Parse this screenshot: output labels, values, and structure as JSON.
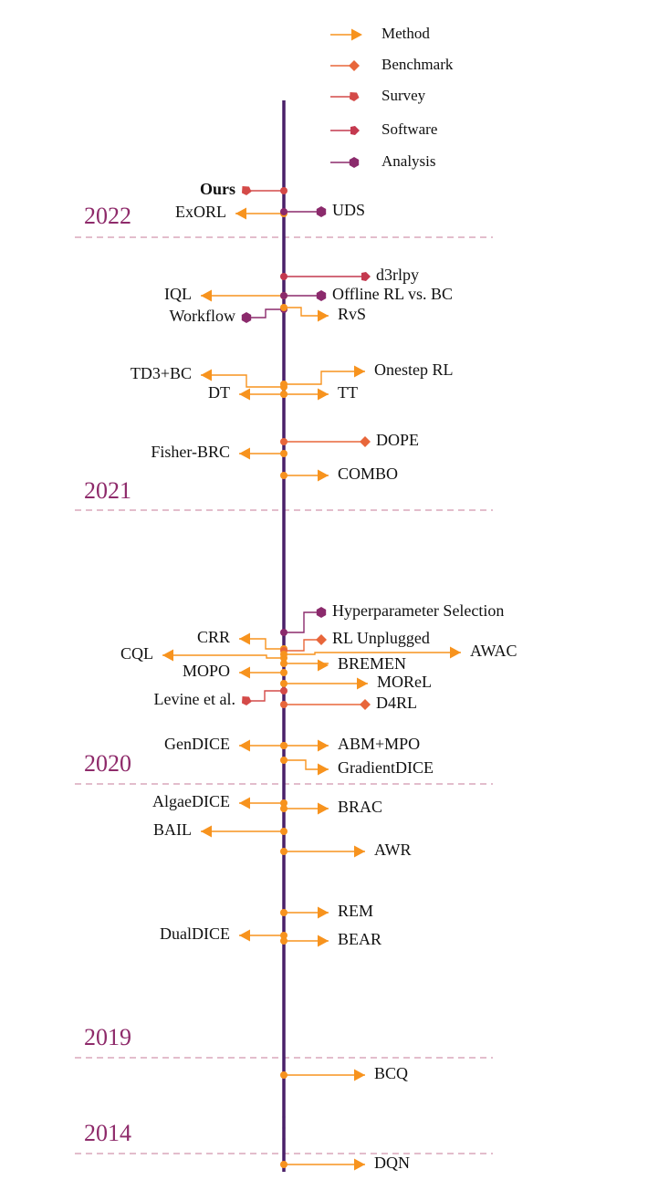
{
  "legend": [
    {
      "type": "Method",
      "label": "Method"
    },
    {
      "type": "Benchmark",
      "label": "Benchmark"
    },
    {
      "type": "Survey",
      "label": "Survey"
    },
    {
      "type": "Software",
      "label": "Software"
    },
    {
      "type": "Analysis",
      "label": "Analysis"
    }
  ],
  "colors": {
    "Method": "#f7931e",
    "Benchmark": "#e8663a",
    "Survey": "#d44a48",
    "Software": "#c4394f",
    "Analysis": "#8b2a6c",
    "axis": "#4a2069",
    "year": "#8e2a6a",
    "divider": "#c77b9a"
  },
  "years": [
    "2022",
    "2021",
    "2020",
    "2019",
    "2014"
  ],
  "entries": [
    {
      "id": "ours",
      "label": "Ours",
      "type": "Survey",
      "side": "left",
      "bold": true
    },
    {
      "id": "exorl",
      "label": "ExORL",
      "type": "Method",
      "side": "left"
    },
    {
      "id": "uds",
      "label": "UDS",
      "type": "Analysis",
      "side": "right"
    },
    {
      "id": "d3rlpy",
      "label": "d3rlpy",
      "type": "Software",
      "side": "right"
    },
    {
      "id": "iql",
      "label": "IQL",
      "type": "Method",
      "side": "left"
    },
    {
      "id": "offline-rl-vs-bc",
      "label": "Offline RL vs. BC",
      "type": "Analysis",
      "side": "right"
    },
    {
      "id": "workflow",
      "label": "Workflow",
      "type": "Analysis",
      "side": "left"
    },
    {
      "id": "rvs",
      "label": "RvS",
      "type": "Method",
      "side": "right"
    },
    {
      "id": "td3-bc",
      "label": "TD3+BC",
      "type": "Method",
      "side": "left"
    },
    {
      "id": "onestep-rl",
      "label": "Onestep RL",
      "type": "Method",
      "side": "right"
    },
    {
      "id": "dt",
      "label": "DT",
      "type": "Method",
      "side": "left"
    },
    {
      "id": "tt",
      "label": "TT",
      "type": "Method",
      "side": "right"
    },
    {
      "id": "dope",
      "label": "DOPE",
      "type": "Benchmark",
      "side": "right"
    },
    {
      "id": "fisher-brc",
      "label": "Fisher-BRC",
      "type": "Method",
      "side": "left"
    },
    {
      "id": "combo",
      "label": "COMBO",
      "type": "Method",
      "side": "right"
    },
    {
      "id": "hyperparameter-selection",
      "label": "Hyperparameter Selection",
      "type": "Analysis",
      "side": "right"
    },
    {
      "id": "crr",
      "label": "CRR",
      "type": "Method",
      "side": "left"
    },
    {
      "id": "rl-unplugged",
      "label": "RL Unplugged",
      "type": "Benchmark",
      "side": "right"
    },
    {
      "id": "awac",
      "label": "AWAC",
      "type": "Method",
      "side": "right"
    },
    {
      "id": "cql",
      "label": "CQL",
      "type": "Method",
      "side": "left"
    },
    {
      "id": "bremen",
      "label": "BREMEN",
      "type": "Method",
      "side": "right"
    },
    {
      "id": "mopo",
      "label": "MOPO",
      "type": "Method",
      "side": "left"
    },
    {
      "id": "morel",
      "label": "MOReL",
      "type": "Method",
      "side": "right"
    },
    {
      "id": "levine-et-al",
      "label": "Levine et al.",
      "type": "Survey",
      "side": "left"
    },
    {
      "id": "d4rl",
      "label": "D4RL",
      "type": "Benchmark",
      "side": "right"
    },
    {
      "id": "gendice",
      "label": "GenDICE",
      "type": "Method",
      "side": "left"
    },
    {
      "id": "abm-mpo",
      "label": "ABM+MPO",
      "type": "Method",
      "side": "right"
    },
    {
      "id": "gradientdice",
      "label": "GradientDICE",
      "type": "Method",
      "side": "right"
    },
    {
      "id": "algaedice",
      "label": "AlgaeDICE",
      "type": "Method",
      "side": "left"
    },
    {
      "id": "brac",
      "label": "BRAC",
      "type": "Method",
      "side": "right"
    },
    {
      "id": "bail",
      "label": "BAIL",
      "type": "Method",
      "side": "left"
    },
    {
      "id": "awr",
      "label": "AWR",
      "type": "Method",
      "side": "right"
    },
    {
      "id": "rem",
      "label": "REM",
      "type": "Method",
      "side": "right"
    },
    {
      "id": "dualdice",
      "label": "DualDICE",
      "type": "Method",
      "side": "left"
    },
    {
      "id": "bear",
      "label": "BEAR",
      "type": "Method",
      "side": "right"
    },
    {
      "id": "bcq",
      "label": "BCQ",
      "type": "Method",
      "side": "right"
    },
    {
      "id": "dqn",
      "label": "DQN",
      "type": "Method",
      "side": "right"
    }
  ]
}
